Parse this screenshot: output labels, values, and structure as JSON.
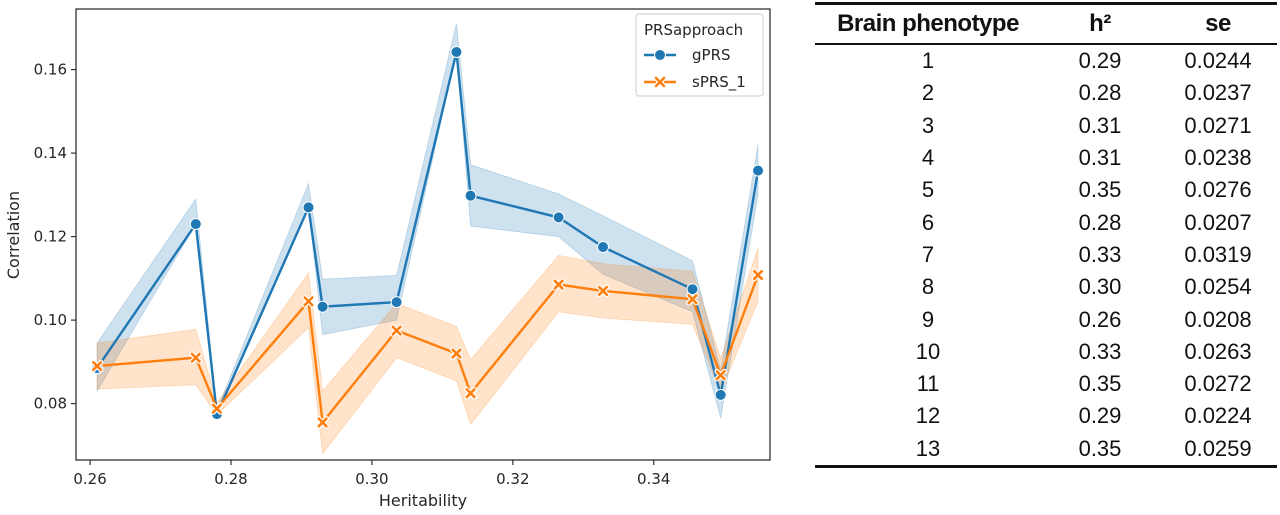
{
  "chart_data": {
    "type": "line",
    "xlabel": "Heritability",
    "ylabel": "Correlation",
    "xlim": [
      0.258,
      0.3565
    ],
    "ylim": [
      0.0665,
      0.1745
    ],
    "x_ticks": [
      "0.26",
      "0.28",
      "0.30",
      "0.32",
      "0.34"
    ],
    "y_ticks": [
      "0.08",
      "0.10",
      "0.12",
      "0.14",
      "0.16"
    ],
    "grid": false,
    "legend": {
      "title": "PRSapproach",
      "placement": "top-right"
    },
    "series": [
      {
        "name": "gPRS",
        "color": "#1f77b4",
        "marker": "circle",
        "x": [
          0.261,
          0.275,
          0.278,
          0.291,
          0.293,
          0.3035,
          0.312,
          0.314,
          0.3265,
          0.3328,
          0.3455,
          0.3495,
          0.3548
        ],
        "y": [
          0.0885,
          0.123,
          0.0775,
          0.127,
          0.1032,
          0.1043,
          0.1642,
          0.1298,
          0.1246,
          0.1175,
          0.1074,
          0.0821,
          0.1358
        ],
        "ci_low": [
          0.083,
          0.123,
          0.0772,
          0.127,
          0.0965,
          0.1,
          0.1642,
          0.1225,
          0.12,
          0.111,
          0.102,
          0.0765,
          0.13
        ],
        "ci_high": [
          0.0945,
          0.129,
          0.0785,
          0.1327,
          0.1098,
          0.1107,
          0.171,
          0.1372,
          0.1302,
          0.125,
          0.1142,
          0.088,
          0.142
        ]
      },
      {
        "name": "sPRS_1",
        "color": "#ff7f0e",
        "marker": "x",
        "x": [
          0.261,
          0.275,
          0.278,
          0.291,
          0.293,
          0.3035,
          0.312,
          0.314,
          0.3265,
          0.3328,
          0.3455,
          0.3495,
          0.3548
        ],
        "y": [
          0.089,
          0.091,
          0.0788,
          0.1045,
          0.0755,
          0.0975,
          0.092,
          0.0825,
          0.1085,
          0.107,
          0.105,
          0.0868,
          0.1108
        ],
        "ci_low": [
          0.0835,
          0.0845,
          0.0773,
          0.0982,
          0.068,
          0.091,
          0.0855,
          0.075,
          0.102,
          0.1005,
          0.099,
          0.0828,
          0.1045
        ],
        "ci_high": [
          0.0945,
          0.0978,
          0.0802,
          0.1113,
          0.083,
          0.104,
          0.0985,
          0.0905,
          0.1155,
          0.1135,
          0.1117,
          0.0908,
          0.1172
        ]
      }
    ]
  },
  "table": {
    "headers": [
      "Brain phenotype",
      "h²",
      "se"
    ],
    "rows": [
      [
        "1",
        "0.29",
        "0.0244"
      ],
      [
        "2",
        "0.28",
        "0.0237"
      ],
      [
        "3",
        "0.31",
        "0.0271"
      ],
      [
        "4",
        "0.31",
        "0.0238"
      ],
      [
        "5",
        "0.35",
        "0.0276"
      ],
      [
        "6",
        "0.28",
        "0.0207"
      ],
      [
        "7",
        "0.33",
        "0.0319"
      ],
      [
        "8",
        "0.30",
        "0.0254"
      ],
      [
        "9",
        "0.26",
        "0.0208"
      ],
      [
        "10",
        "0.33",
        "0.0263"
      ],
      [
        "11",
        "0.35",
        "0.0272"
      ],
      [
        "12",
        "0.29",
        "0.0224"
      ],
      [
        "13",
        "0.35",
        "0.0259"
      ]
    ]
  }
}
